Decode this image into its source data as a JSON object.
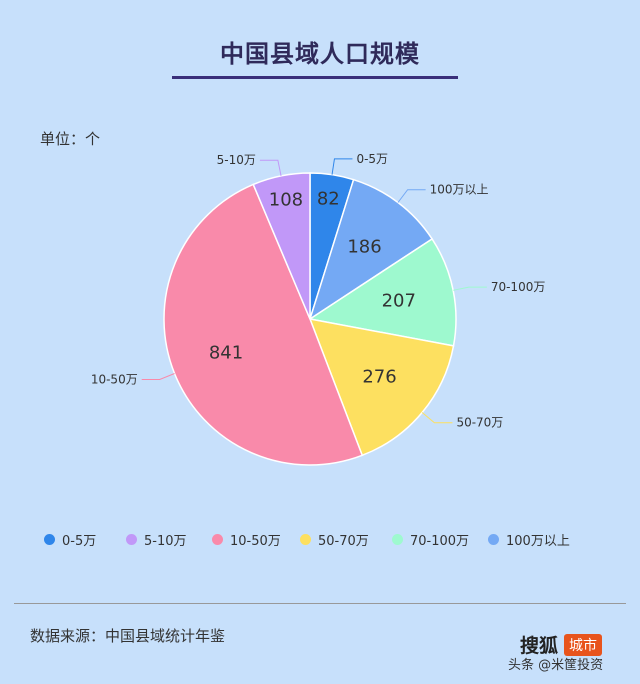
{
  "header": {
    "title": "中国县域人口规模",
    "unit": "单位：个"
  },
  "chart_data": {
    "type": "pie",
    "title": "中国县域人口规模",
    "unit": "单位：个",
    "slices": [
      {
        "label": "0-5万",
        "value": 82,
        "color": "#2f86ea"
      },
      {
        "label": "100万以上",
        "value": 186,
        "color": "#74a9f4"
      },
      {
        "label": "70-100万",
        "value": 207,
        "color": "#9ef9cf"
      },
      {
        "label": "50-70万",
        "value": 276,
        "color": "#fde060"
      },
      {
        "label": "10-50万",
        "value": 841,
        "color": "#f98aaa"
      },
      {
        "label": "5-10万",
        "value": 108,
        "color": "#c198f8"
      }
    ],
    "legend": [
      "0-5万",
      "5-10万",
      "10-50万",
      "50-70万",
      "70-100万",
      "100万以上"
    ],
    "legend_position": "bottom"
  },
  "footer": {
    "source": "数据来源：中国县域统计年鉴",
    "brand": "搜狐",
    "brand_tag": "城市",
    "watermark": "头条 @米筐投资"
  }
}
